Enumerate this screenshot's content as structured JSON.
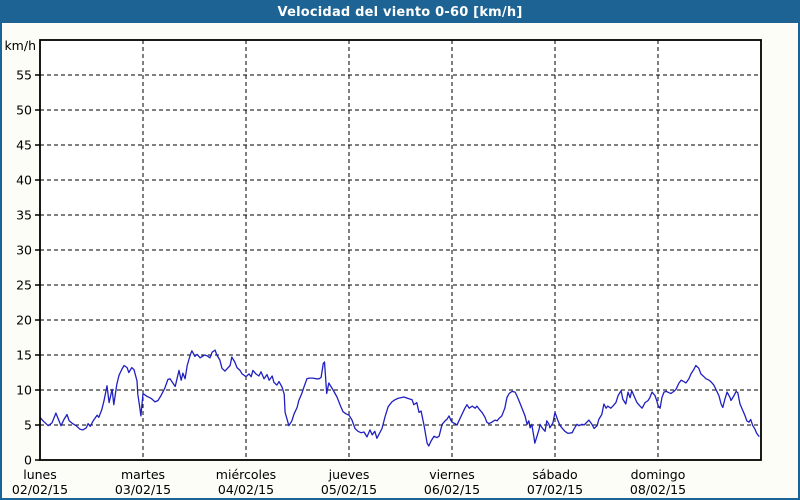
{
  "window": {
    "title": "Velocidad del viento 0-60 [km/h]"
  },
  "colors": {
    "titlebar_bg": "#1d6394",
    "titlebar_text": "#ffffff",
    "window_border": "#1d6394",
    "page_bg": "#fcfdf7",
    "plot_bg": "#ffffff",
    "grid": "#000000",
    "axis": "#000000",
    "text": "#000000",
    "line": "#2020c0"
  },
  "chart_data": {
    "type": "line",
    "title": "Velocidad del viento 0-60 [km/h]",
    "ylabel": "km/h",
    "xlabel": "",
    "ylim": [
      0,
      60
    ],
    "ytick_step": 5,
    "ytick_label_max": 55,
    "xlim": [
      0,
      168
    ],
    "x_unit": "hours since lunes 02/02/15 00:00",
    "grid": "dashed",
    "legend_position": "none",
    "days": [
      {
        "label": "lunes",
        "date": "02/02/15"
      },
      {
        "label": "martes",
        "date": "03/02/15"
      },
      {
        "label": "miércoles",
        "date": "04/02/15"
      },
      {
        "label": "jueves",
        "date": "05/02/15"
      },
      {
        "label": "viernes",
        "date": "06/02/15"
      },
      {
        "label": "sábado",
        "date": "07/02/15"
      },
      {
        "label": "domingo",
        "date": "08/02/15"
      }
    ],
    "series": [
      {
        "name": "Velocidad del viento",
        "color": "#2020c0",
        "points": [
          [
            0,
            6.1
          ],
          [
            0.7,
            5.6
          ],
          [
            1.9,
            4.9
          ],
          [
            2.8,
            5.3
          ],
          [
            3.7,
            6.7
          ],
          [
            4.9,
            4.9
          ],
          [
            5.6,
            5.8
          ],
          [
            6.3,
            6.5
          ],
          [
            6.8,
            5.6
          ],
          [
            7.6,
            5.2
          ],
          [
            8.4,
            4.9
          ],
          [
            9.3,
            4.4
          ],
          [
            10.0,
            4.3
          ],
          [
            10.8,
            4.6
          ],
          [
            11.2,
            5.2
          ],
          [
            11.7,
            4.8
          ],
          [
            12.4,
            5.6
          ],
          [
            13.3,
            6.4
          ],
          [
            13.7,
            6.1
          ],
          [
            14.4,
            7.2
          ],
          [
            14.9,
            8.4
          ],
          [
            15.6,
            10.6
          ],
          [
            16.1,
            8.2
          ],
          [
            16.8,
            10.1
          ],
          [
            17.2,
            7.9
          ],
          [
            17.9,
            10.8
          ],
          [
            18.4,
            12.1
          ],
          [
            19.1,
            13.0
          ],
          [
            19.6,
            13.5
          ],
          [
            20.3,
            13.2
          ],
          [
            20.7,
            12.5
          ],
          [
            21.4,
            13.2
          ],
          [
            21.9,
            12.9
          ],
          [
            22.6,
            11.3
          ],
          [
            22.8,
            9.4
          ],
          [
            23.2,
            7.7
          ],
          [
            23.5,
            6.3
          ],
          [
            24.0,
            9.5
          ],
          [
            24.9,
            9.1
          ],
          [
            25.9,
            8.8
          ],
          [
            26.8,
            8.3
          ],
          [
            27.5,
            8.5
          ],
          [
            28.2,
            9.2
          ],
          [
            29.1,
            10.3
          ],
          [
            29.8,
            11.5
          ],
          [
            30.3,
            11.6
          ],
          [
            31.5,
            10.5
          ],
          [
            32.4,
            12.8
          ],
          [
            32.9,
            11.4
          ],
          [
            33.3,
            12.4
          ],
          [
            33.8,
            11.6
          ],
          [
            34.3,
            13.5
          ],
          [
            35.0,
            15.0
          ],
          [
            35.4,
            15.6
          ],
          [
            36.1,
            14.8
          ],
          [
            36.6,
            15.1
          ],
          [
            37.3,
            14.6
          ],
          [
            38.4,
            15.0
          ],
          [
            38.9,
            14.9
          ],
          [
            39.6,
            14.6
          ],
          [
            40.1,
            15.4
          ],
          [
            40.8,
            15.7
          ],
          [
            41.2,
            15.0
          ],
          [
            41.9,
            14.3
          ],
          [
            42.4,
            13.1
          ],
          [
            43.1,
            12.7
          ],
          [
            44.3,
            13.5
          ],
          [
            44.7,
            14.7
          ],
          [
            45.4,
            14.0
          ],
          [
            45.9,
            13.2
          ],
          [
            46.6,
            12.8
          ],
          [
            47.1,
            12.3
          ],
          [
            48.0,
            11.9
          ],
          [
            48.7,
            12.3
          ],
          [
            49.2,
            11.9
          ],
          [
            49.6,
            12.8
          ],
          [
            50.3,
            12.3
          ],
          [
            51.0,
            12.0
          ],
          [
            51.5,
            12.6
          ],
          [
            52.2,
            11.6
          ],
          [
            52.9,
            12.2
          ],
          [
            53.4,
            11.4
          ],
          [
            54.1,
            12.0
          ],
          [
            54.5,
            11.1
          ],
          [
            55.2,
            10.7
          ],
          [
            55.7,
            11.2
          ],
          [
            56.4,
            10.4
          ],
          [
            56.9,
            9.4
          ],
          [
            57.1,
            6.8
          ],
          [
            57.8,
            5.3
          ],
          [
            58.0,
            4.9
          ],
          [
            58.7,
            5.6
          ],
          [
            59.2,
            6.6
          ],
          [
            59.9,
            7.5
          ],
          [
            60.3,
            8.5
          ],
          [
            61.0,
            9.5
          ],
          [
            61.5,
            10.4
          ],
          [
            62.2,
            11.6
          ],
          [
            62.7,
            11.7
          ],
          [
            63.6,
            11.7
          ],
          [
            64.3,
            11.6
          ],
          [
            65.0,
            11.6
          ],
          [
            65.5,
            11.8
          ],
          [
            66.0,
            13.8
          ],
          [
            66.3,
            14.0
          ],
          [
            66.8,
            9.5
          ],
          [
            67.3,
            11.0
          ],
          [
            68.3,
            10.0
          ],
          [
            69.2,
            9.0
          ],
          [
            69.9,
            7.9
          ],
          [
            70.6,
            6.9
          ],
          [
            71.3,
            6.6
          ],
          [
            72.0,
            6.4
          ],
          [
            72.7,
            5.7
          ],
          [
            73.4,
            4.5
          ],
          [
            74.1,
            4.1
          ],
          [
            74.8,
            3.9
          ],
          [
            75.5,
            4.0
          ],
          [
            76.2,
            3.3
          ],
          [
            76.9,
            4.3
          ],
          [
            77.4,
            3.6
          ],
          [
            78.0,
            4.1
          ],
          [
            78.5,
            3.1
          ],
          [
            79.7,
            4.5
          ],
          [
            80.4,
            6.2
          ],
          [
            81.1,
            7.6
          ],
          [
            82.0,
            8.3
          ],
          [
            82.7,
            8.6
          ],
          [
            83.4,
            8.8
          ],
          [
            84.8,
            9.0
          ],
          [
            85.7,
            8.8
          ],
          [
            86.7,
            8.6
          ],
          [
            87.1,
            7.9
          ],
          [
            87.8,
            8.2
          ],
          [
            88.3,
            6.8
          ],
          [
            88.8,
            7.0
          ],
          [
            89.5,
            4.9
          ],
          [
            90.2,
            2.4
          ],
          [
            90.6,
            2.0
          ],
          [
            91.1,
            2.7
          ],
          [
            91.8,
            3.4
          ],
          [
            92.5,
            3.2
          ],
          [
            93.0,
            3.4
          ],
          [
            93.7,
            5.1
          ],
          [
            94.4,
            5.6
          ],
          [
            94.8,
            5.8
          ],
          [
            95.3,
            6.3
          ],
          [
            95.8,
            5.6
          ],
          [
            96.0,
            5.4
          ],
          [
            96.7,
            5.2
          ],
          [
            97.2,
            5.0
          ],
          [
            97.6,
            5.6
          ],
          [
            98.3,
            6.5
          ],
          [
            99.0,
            7.4
          ],
          [
            99.5,
            7.9
          ],
          [
            100.0,
            7.4
          ],
          [
            100.7,
            7.7
          ],
          [
            101.4,
            7.4
          ],
          [
            101.8,
            7.7
          ],
          [
            102.3,
            7.3
          ],
          [
            103.0,
            6.8
          ],
          [
            103.7,
            6.1
          ],
          [
            104.1,
            5.4
          ],
          [
            104.6,
            5.2
          ],
          [
            105.3,
            5.4
          ],
          [
            106.0,
            5.7
          ],
          [
            106.5,
            5.6
          ],
          [
            106.9,
            5.9
          ],
          [
            107.6,
            6.3
          ],
          [
            108.3,
            7.4
          ],
          [
            108.8,
            8.9
          ],
          [
            109.3,
            9.5
          ],
          [
            110.0,
            9.8
          ],
          [
            110.7,
            9.7
          ],
          [
            111.1,
            9.2
          ],
          [
            111.6,
            8.5
          ],
          [
            112.3,
            7.4
          ],
          [
            113.0,
            6.3
          ],
          [
            113.5,
            5.1
          ],
          [
            113.9,
            5.6
          ],
          [
            114.2,
            4.6
          ],
          [
            114.6,
            5.1
          ],
          [
            115.1,
            3.2
          ],
          [
            115.3,
            2.4
          ],
          [
            115.8,
            3.4
          ],
          [
            116.3,
            4.4
          ],
          [
            116.5,
            5.1
          ],
          [
            117.0,
            4.6
          ],
          [
            117.7,
            4.1
          ],
          [
            118.1,
            5.6
          ],
          [
            118.6,
            5.1
          ],
          [
            118.8,
            4.6
          ],
          [
            119.5,
            5.3
          ],
          [
            120.0,
            6.8
          ],
          [
            120.7,
            5.6
          ],
          [
            121.2,
            4.9
          ],
          [
            121.6,
            4.6
          ],
          [
            122.3,
            4.1
          ],
          [
            123.0,
            3.8
          ],
          [
            124.0,
            3.9
          ],
          [
            124.4,
            4.4
          ],
          [
            125.1,
            5.1
          ],
          [
            125.6,
            4.9
          ],
          [
            126.3,
            5.1
          ],
          [
            126.8,
            5.0
          ],
          [
            127.4,
            5.4
          ],
          [
            127.9,
            5.7
          ],
          [
            128.6,
            5.1
          ],
          [
            129.1,
            4.5
          ],
          [
            129.8,
            4.9
          ],
          [
            130.2,
            5.8
          ],
          [
            130.9,
            6.5
          ],
          [
            131.4,
            8.0
          ],
          [
            131.9,
            7.4
          ],
          [
            132.3,
            7.7
          ],
          [
            133.0,
            7.4
          ],
          [
            133.5,
            7.7
          ],
          [
            134.2,
            8.2
          ],
          [
            134.7,
            9.2
          ],
          [
            135.4,
            9.9
          ],
          [
            135.8,
            8.7
          ],
          [
            136.5,
            8.0
          ],
          [
            137.0,
            9.7
          ],
          [
            137.5,
            8.9
          ],
          [
            137.9,
            9.9
          ],
          [
            138.6,
            8.9
          ],
          [
            139.1,
            8.2
          ],
          [
            139.8,
            7.7
          ],
          [
            140.3,
            7.4
          ],
          [
            141.0,
            8.2
          ],
          [
            141.7,
            8.5
          ],
          [
            142.1,
            8.9
          ],
          [
            142.6,
            9.7
          ],
          [
            143.3,
            9.2
          ],
          [
            143.7,
            8.5
          ],
          [
            144.0,
            7.8
          ],
          [
            144.5,
            7.4
          ],
          [
            144.9,
            8.9
          ],
          [
            145.4,
            9.7
          ],
          [
            145.9,
            9.8
          ],
          [
            146.6,
            9.6
          ],
          [
            147.0,
            9.5
          ],
          [
            147.7,
            9.8
          ],
          [
            148.2,
            10.1
          ],
          [
            148.9,
            11.0
          ],
          [
            149.4,
            11.4
          ],
          [
            150.0,
            11.2
          ],
          [
            150.5,
            11.0
          ],
          [
            151.2,
            11.6
          ],
          [
            151.7,
            12.3
          ],
          [
            152.4,
            13.0
          ],
          [
            152.8,
            13.5
          ],
          [
            153.5,
            13.1
          ],
          [
            154.0,
            12.3
          ],
          [
            154.7,
            11.9
          ],
          [
            155.2,
            11.6
          ],
          [
            155.9,
            11.4
          ],
          [
            156.3,
            11.2
          ],
          [
            157.0,
            10.7
          ],
          [
            157.5,
            10.1
          ],
          [
            158.2,
            9.2
          ],
          [
            158.7,
            8.0
          ],
          [
            159.1,
            7.5
          ],
          [
            159.6,
            8.7
          ],
          [
            160.1,
            9.7
          ],
          [
            160.8,
            8.9
          ],
          [
            161.0,
            8.5
          ],
          [
            161.7,
            9.2
          ],
          [
            162.2,
            9.8
          ],
          [
            162.6,
            9.6
          ],
          [
            163.1,
            8.0
          ],
          [
            163.6,
            7.3
          ],
          [
            164.3,
            6.3
          ],
          [
            164.7,
            5.6
          ],
          [
            165.2,
            5.4
          ],
          [
            165.6,
            5.8
          ],
          [
            166.1,
            4.9
          ],
          [
            166.6,
            4.4
          ],
          [
            167.0,
            3.8
          ],
          [
            167.5,
            3.4
          ]
        ]
      }
    ]
  }
}
